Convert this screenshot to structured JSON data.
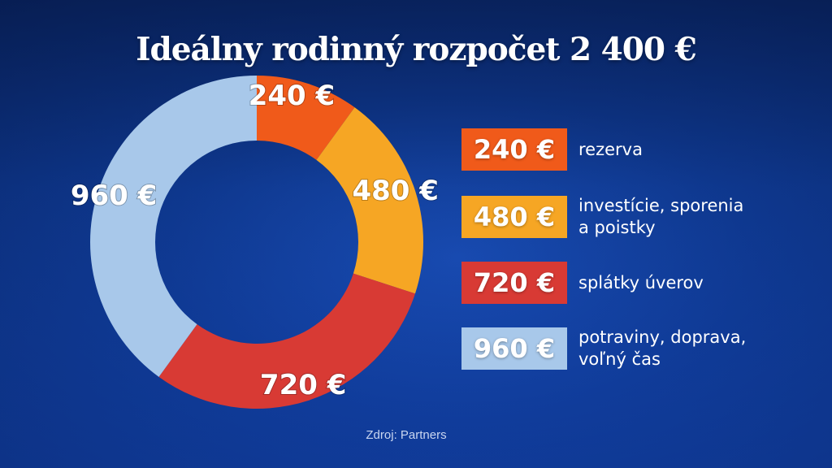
{
  "chart_data": {
    "type": "pie",
    "title": "Ideálny rodinný rozpočet 2 400 €",
    "categories": [
      "rezerva",
      "investície, sporenia a poistky",
      "splátky úverov",
      "potraviny, doprava, voľný čas"
    ],
    "values": [
      240,
      480,
      720,
      960
    ],
    "value_labels": [
      "240 €",
      "480 €",
      "720 €",
      "960 €"
    ],
    "colors": [
      "#f05a1a",
      "#f6a624",
      "#d83a34",
      "#a8c8ea"
    ],
    "donut": true,
    "legend_placement": "right"
  },
  "legend": [
    {
      "value": "240 €",
      "label": "rezerva"
    },
    {
      "value": "480 €",
      "label": "investície, sporenia\na poistky"
    },
    {
      "value": "720 €",
      "label": "splátky úverov"
    },
    {
      "value": "960 €",
      "label": "potraviny, doprava,\nvoľný čas"
    }
  ],
  "source": "Zdroj: Partners"
}
